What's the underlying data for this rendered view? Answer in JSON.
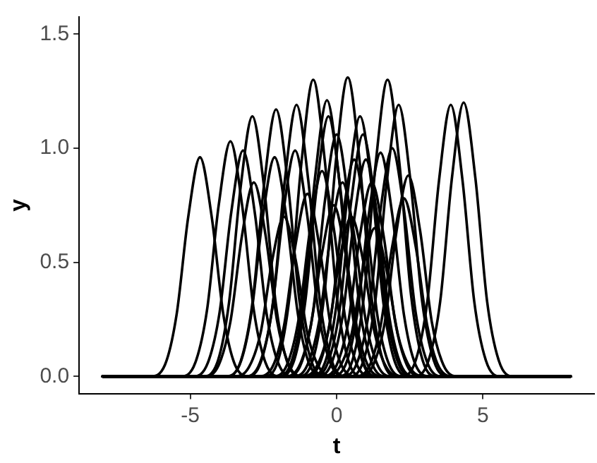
{
  "chart_data": {
    "type": "line",
    "xlabel": "t",
    "ylabel": "y",
    "xlim": [
      -8.8,
      8.8
    ],
    "ylim": [
      -0.075,
      1.575
    ],
    "xticks": [
      -5,
      0,
      5
    ],
    "yticks": [
      {
        "value": 0,
        "label": "0.0"
      },
      {
        "value": 0.5,
        "label": "0.5"
      },
      {
        "value": 1,
        "label": "1.0"
      },
      {
        "value": 1.5,
        "label": "1.5"
      }
    ],
    "grid": false,
    "legend": false,
    "series": [
      {
        "color": "#000000",
        "x": [
          -8,
          -6.37,
          -5.87,
          -5.47,
          -5.07,
          -4.67,
          -4.27,
          -3.87,
          -3.47,
          -2.97,
          8
        ],
        "values": [
          0,
          0,
          0.05,
          0.27,
          0.7,
          0.96,
          0.7,
          0.27,
          0.05,
          0,
          0
        ]
      },
      {
        "color": "#000000",
        "x": [
          -8,
          -5.33,
          -4.83,
          -4.43,
          -4.03,
          -3.63,
          -3.23,
          -2.83,
          -2.43,
          -1.93,
          8
        ],
        "values": [
          0,
          0,
          0.06,
          0.29,
          0.75,
          1.03,
          0.75,
          0.29,
          0.06,
          0,
          0
        ]
      },
      {
        "color": "#000000",
        "x": [
          -8,
          -4.9,
          -4.4,
          -4,
          -3.6,
          -3.2,
          -2.8,
          -2.4,
          -2,
          -1.5,
          8
        ],
        "values": [
          0,
          0,
          0.06,
          0.28,
          0.72,
          0.99,
          0.72,
          0.28,
          0.06,
          0,
          0
        ]
      },
      {
        "color": "#000000",
        "x": [
          -8,
          -4.58,
          -4.08,
          -3.68,
          -3.28,
          -2.88,
          -2.48,
          -2.08,
          -1.68,
          -1.18,
          8
        ],
        "values": [
          0,
          0,
          0.06,
          0.32,
          0.83,
          1.14,
          0.83,
          0.32,
          0.06,
          0,
          0
        ]
      },
      {
        "color": "#000000",
        "x": [
          -8,
          -4.53,
          -4.03,
          -3.63,
          -3.23,
          -2.83,
          -2.43,
          -2.03,
          -1.63,
          -1.13,
          8
        ],
        "values": [
          0,
          0,
          0.05,
          0.24,
          0.62,
          0.85,
          0.62,
          0.24,
          0.05,
          0,
          0
        ]
      },
      {
        "color": "#000000",
        "x": [
          -8,
          -3.77,
          -3.27,
          -2.87,
          -2.47,
          -2.07,
          -1.67,
          -1.27,
          -0.87,
          -0.37,
          8
        ],
        "values": [
          0,
          0,
          0.07,
          0.33,
          0.85,
          1.17,
          0.85,
          0.33,
          0.07,
          0,
          0
        ]
      },
      {
        "color": "#000000",
        "x": [
          -8,
          -3.82,
          -3.32,
          -2.92,
          -2.52,
          -2.12,
          -1.72,
          -1.32,
          -0.92,
          -0.42,
          8
        ],
        "values": [
          0,
          0,
          0.05,
          0.27,
          0.7,
          0.96,
          0.7,
          0.27,
          0.05,
          0,
          0
        ]
      },
      {
        "color": "#000000",
        "x": [
          -8,
          -3.07,
          -2.57,
          -2.17,
          -1.77,
          -1.37,
          -0.97,
          -0.57,
          -0.17,
          0.33,
          8
        ],
        "values": [
          0,
          0,
          0.07,
          0.33,
          0.86,
          1.19,
          0.86,
          0.33,
          0.07,
          0,
          0
        ]
      },
      {
        "color": "#000000",
        "x": [
          -8,
          -3.12,
          -2.62,
          -2.22,
          -1.82,
          -1.42,
          -1.02,
          -0.62,
          -0.22,
          0.28,
          8
        ],
        "values": [
          0,
          0,
          0.06,
          0.28,
          0.72,
          0.99,
          0.72,
          0.28,
          0.06,
          0,
          0
        ]
      },
      {
        "color": "#000000",
        "x": [
          -8,
          -2.5,
          -2,
          -1.6,
          -1.2,
          -0.8,
          -0.4,
          0,
          0.4,
          0.9,
          8
        ],
        "values": [
          0,
          0,
          0.07,
          0.36,
          0.94,
          1.3,
          0.94,
          0.36,
          0.07,
          0,
          0
        ]
      },
      {
        "color": "#000000",
        "x": [
          -8,
          -2.03,
          -1.53,
          -1.13,
          -0.73,
          -0.33,
          0.07,
          0.47,
          0.87,
          1.37,
          8
        ],
        "values": [
          0,
          0,
          0.07,
          0.34,
          0.88,
          1.21,
          0.88,
          0.34,
          0.07,
          0,
          0
        ]
      },
      {
        "color": "#000000",
        "x": [
          -8,
          -1.98,
          -1.48,
          -1.08,
          -0.68,
          -0.28,
          0.12,
          0.52,
          0.92,
          1.42,
          8
        ],
        "values": [
          0,
          0,
          0.06,
          0.32,
          0.83,
          1.14,
          0.83,
          0.32,
          0.06,
          0,
          0
        ]
      },
      {
        "color": "#000000",
        "x": [
          -8,
          -1.7,
          -1.2,
          -0.8,
          -0.4,
          0,
          0.4,
          0.8,
          1.2,
          1.7,
          8
        ],
        "values": [
          0,
          0,
          0.06,
          0.29,
          0.77,
          1.06,
          0.77,
          0.29,
          0.06,
          0,
          0
        ]
      },
      {
        "color": "#000000",
        "x": [
          -8,
          -1.32,
          -0.82,
          -0.42,
          -0.02,
          0.38,
          0.78,
          1.18,
          1.58,
          2.08,
          8
        ],
        "values": [
          0,
          0,
          0.07,
          0.36,
          0.95,
          1.31,
          0.95,
          0.36,
          0.07,
          0,
          0
        ]
      },
      {
        "color": "#000000",
        "x": [
          -8,
          -0.9,
          -0.4,
          0,
          0.4,
          0.8,
          1.2,
          1.6,
          2,
          2.5,
          8
        ],
        "values": [
          0,
          0,
          0.06,
          0.32,
          0.83,
          1.14,
          0.83,
          0.32,
          0.06,
          0,
          0
        ]
      },
      {
        "color": "#000000",
        "x": [
          -8,
          0.04,
          0.54,
          0.94,
          1.34,
          1.74,
          2.14,
          2.54,
          2.94,
          3.44,
          8
        ],
        "values": [
          0,
          0,
          0.07,
          0.36,
          0.94,
          1.3,
          0.94,
          0.36,
          0.07,
          0,
          0
        ]
      },
      {
        "color": "#000000",
        "x": [
          -8,
          0.42,
          0.92,
          1.32,
          1.72,
          2.12,
          2.52,
          2.92,
          3.32,
          3.82,
          8
        ],
        "values": [
          0,
          0,
          0.07,
          0.33,
          0.86,
          1.19,
          0.86,
          0.33,
          0.07,
          0,
          0
        ]
      },
      {
        "color": "#000000",
        "x": [
          -8,
          2.2,
          2.7,
          3.1,
          3.5,
          3.9,
          4.3,
          4.7,
          5.1,
          5.6,
          8
        ],
        "values": [
          0,
          0,
          0.07,
          0.33,
          0.86,
          1.19,
          0.86,
          0.33,
          0.07,
          0,
          0
        ]
      },
      {
        "color": "#000000",
        "x": [
          -8,
          2.64,
          3.14,
          3.54,
          3.94,
          4.34,
          4.74,
          5.14,
          5.54,
          6.04,
          8
        ],
        "values": [
          0,
          0,
          0.07,
          0.33,
          0.87,
          1.2,
          0.87,
          0.33,
          0.07,
          0,
          0
        ]
      },
      {
        "color": "#000000",
        "x": [
          -8,
          -0.8,
          -0.3,
          0.1,
          0.5,
          0.9,
          1.3,
          1.7,
          2.1,
          2.6,
          8
        ],
        "values": [
          0,
          0,
          0.06,
          0.29,
          0.77,
          1.06,
          0.77,
          0.29,
          0.06,
          0,
          0
        ]
      },
      {
        "color": "#000000",
        "x": [
          -8,
          -0.2,
          0.3,
          0.7,
          1.1,
          1.5,
          1.9,
          2.3,
          2.7,
          3.2,
          8
        ],
        "values": [
          0,
          0,
          0.05,
          0.27,
          0.71,
          0.98,
          0.71,
          0.27,
          0.05,
          0,
          0
        ]
      },
      {
        "color": "#000000",
        "x": [
          -8,
          0.2,
          0.7,
          1.1,
          1.5,
          1.9,
          2.3,
          2.7,
          3.1,
          3.6,
          8
        ],
        "values": [
          0,
          0,
          0.06,
          0.28,
          0.73,
          1,
          0.73,
          0.28,
          0.06,
          0,
          0
        ]
      },
      {
        "color": "#000000",
        "x": [
          -8,
          0.75,
          1.25,
          1.65,
          2.05,
          2.45,
          2.85,
          3.25,
          3.65,
          4.15,
          8
        ],
        "values": [
          0,
          0,
          0.05,
          0.24,
          0.64,
          0.88,
          0.64,
          0.24,
          0.05,
          0,
          0
        ]
      },
      {
        "color": "#000000",
        "x": [
          -8,
          0.6,
          1.1,
          1.5,
          1.9,
          2.3,
          2.7,
          3.1,
          3.5,
          4,
          8
        ],
        "values": [
          0,
          0,
          0.04,
          0.22,
          0.57,
          0.78,
          0.57,
          0.22,
          0.04,
          0,
          0
        ]
      },
      {
        "color": "#000000",
        "x": [
          -8,
          -2.7,
          -2.2,
          -1.8,
          -1.4,
          -1,
          -0.6,
          -0.2,
          0.2,
          0.7,
          8
        ],
        "values": [
          0,
          0,
          0.04,
          0.22,
          0.58,
          0.8,
          0.58,
          0.22,
          0.04,
          0,
          0
        ]
      },
      {
        "color": "#000000",
        "x": [
          -8,
          -2.2,
          -1.7,
          -1.3,
          -0.9,
          -0.5,
          -0.1,
          0.3,
          0.7,
          1.2,
          8
        ],
        "values": [
          0,
          0,
          0.05,
          0.25,
          0.65,
          0.9,
          0.65,
          0.25,
          0.05,
          0,
          0
        ]
      },
      {
        "color": "#000000",
        "x": [
          -8,
          -1.5,
          -1,
          -0.6,
          -0.2,
          0.2,
          0.6,
          1,
          1.4,
          1.9,
          8
        ],
        "values": [
          0,
          0,
          0.05,
          0.24,
          0.62,
          0.85,
          0.62,
          0.24,
          0.05,
          0,
          0
        ]
      },
      {
        "color": "#000000",
        "x": [
          -8,
          -1.2,
          -0.7,
          -0.3,
          0.1,
          0.5,
          0.9,
          1.3,
          1.7,
          2.2,
          8
        ],
        "values": [
          0,
          0,
          0.04,
          0.19,
          0.51,
          0.7,
          0.51,
          0.19,
          0.04,
          0,
          0
        ]
      },
      {
        "color": "#000000",
        "x": [
          -8,
          -0.5,
          0,
          0.4,
          0.8,
          1.2,
          1.6,
          2,
          2.4,
          2.9,
          8
        ],
        "values": [
          0,
          0,
          0.05,
          0.24,
          0.62,
          0.85,
          0.62,
          0.24,
          0.05,
          0,
          0
        ]
      },
      {
        "color": "#000000",
        "x": [
          -8,
          -3.5,
          -3,
          -2.6,
          -2.2,
          -1.8,
          -1.4,
          -1,
          -0.6,
          -0.1,
          8
        ],
        "values": [
          0,
          0,
          0.04,
          0.19,
          0.51,
          0.7,
          0.51,
          0.19,
          0.04,
          0,
          0
        ]
      },
      {
        "color": "#000000",
        "x": [
          -8,
          -0.7,
          -0.2,
          0.2,
          0.6,
          1,
          1.4,
          1.8,
          2.2,
          2.7,
          8
        ],
        "values": [
          0,
          0,
          0.05,
          0.26,
          0.69,
          0.95,
          0.69,
          0.26,
          0.05,
          0,
          0
        ]
      },
      {
        "color": "#000000",
        "x": [
          -8,
          -1.8,
          -1.3,
          -0.9,
          -0.5,
          -0.1,
          0.3,
          0.7,
          1.1,
          1.6,
          8
        ],
        "values": [
          0,
          0,
          0.04,
          0.21,
          0.54,
          0.75,
          0.54,
          0.21,
          0.04,
          0,
          0
        ]
      },
      {
        "color": "#000000",
        "x": [
          -8,
          -1.1,
          -0.6,
          -0.2,
          0.2,
          0.6,
          1,
          1.4,
          1.8,
          2.3,
          8
        ],
        "values": [
          0,
          0,
          0.05,
          0.26,
          0.69,
          0.95,
          0.69,
          0.26,
          0.05,
          0,
          0
        ]
      },
      {
        "color": "#000000",
        "x": [
          -8,
          -0.4,
          0.1,
          0.5,
          0.9,
          1.3,
          1.7,
          2.1,
          2.5,
          3,
          8
        ],
        "values": [
          0,
          0,
          0.04,
          0.18,
          0.47,
          0.65,
          0.47,
          0.18,
          0.04,
          0,
          0
        ]
      }
    ]
  }
}
